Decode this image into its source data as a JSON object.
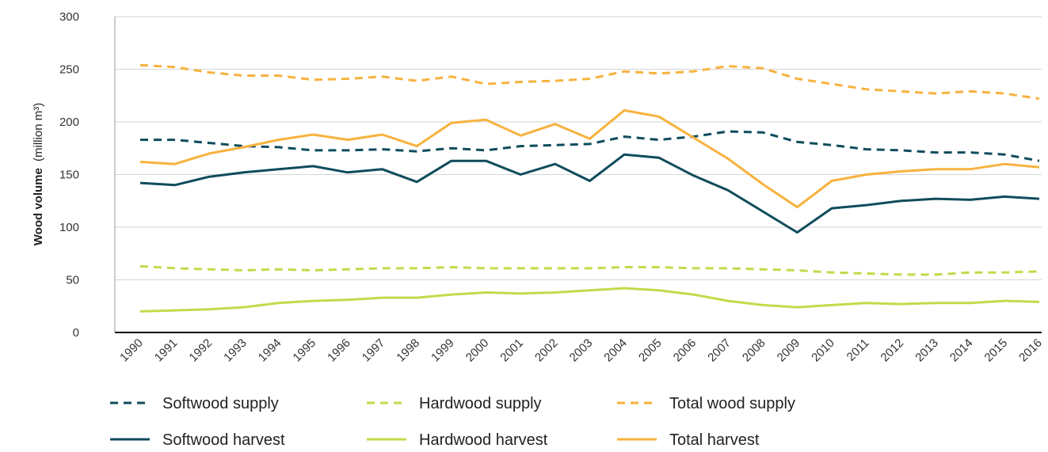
{
  "chart_data": {
    "type": "line",
    "ylabel_bold": "Wood volume",
    "ylabel_rest": "(million m³)",
    "ylim": [
      0,
      300
    ],
    "yticks": [
      0,
      50,
      100,
      150,
      200,
      250,
      300
    ],
    "grid": "horizontal",
    "legend_placement": "bottom",
    "x": [
      "1990",
      "1991",
      "1992",
      "1993",
      "1994",
      "1995",
      "1996",
      "1997",
      "1998",
      "1999",
      "2000",
      "2001",
      "2002",
      "2003",
      "2004",
      "2005",
      "2006",
      "2007",
      "2008",
      "2009",
      "2010",
      "2011",
      "2012",
      "2013",
      "2014",
      "2015",
      "2016"
    ],
    "series": [
      {
        "name": "Softwood supply",
        "color": "#0f4c5c",
        "dash": true,
        "values": [
          183,
          183,
          180,
          177,
          176,
          173,
          173,
          174,
          172,
          175,
          173,
          177,
          178,
          179,
          186,
          183,
          186,
          191,
          190,
          181,
          178,
          174,
          173,
          171,
          171,
          169,
          163
        ]
      },
      {
        "name": "Hardwood supply",
        "color": "#c5d94a",
        "dash": true,
        "values": [
          63,
          61,
          60,
          59,
          60,
          59,
          60,
          61,
          61,
          62,
          61,
          61,
          61,
          61,
          62,
          62,
          61,
          61,
          60,
          59,
          57,
          56,
          55,
          55,
          57,
          57,
          58
        ]
      },
      {
        "name": "Total wood supply",
        "color": "#f7b23e",
        "dash": true,
        "values": [
          254,
          252,
          247,
          244,
          244,
          240,
          241,
          243,
          239,
          243,
          236,
          238,
          239,
          241,
          248,
          246,
          248,
          253,
          251,
          241,
          236,
          231,
          229,
          227,
          229,
          227,
          222
        ]
      },
      {
        "name": "Softwood harvest",
        "color": "#0f4c5c",
        "dash": false,
        "values": [
          142,
          140,
          148,
          152,
          155,
          158,
          152,
          155,
          143,
          163,
          163,
          150,
          160,
          144,
          169,
          166,
          149,
          135,
          115,
          95,
          118,
          121,
          125,
          127,
          126,
          129,
          127
        ]
      },
      {
        "name": "Hardwood harvest",
        "color": "#c5d94a",
        "dash": false,
        "values": [
          20,
          21,
          22,
          24,
          28,
          30,
          31,
          33,
          33,
          36,
          38,
          37,
          38,
          40,
          42,
          40,
          36,
          30,
          26,
          24,
          26,
          28,
          27,
          28,
          28,
          30,
          29
        ]
      },
      {
        "name": "Total harvest",
        "color": "#f7b23e",
        "dash": false,
        "values": [
          162,
          160,
          170,
          176,
          183,
          188,
          183,
          188,
          177,
          199,
          202,
          187,
          198,
          184,
          211,
          205,
          185,
          165,
          141,
          119,
          144,
          150,
          153,
          155,
          155,
          160,
          157
        ]
      }
    ]
  }
}
